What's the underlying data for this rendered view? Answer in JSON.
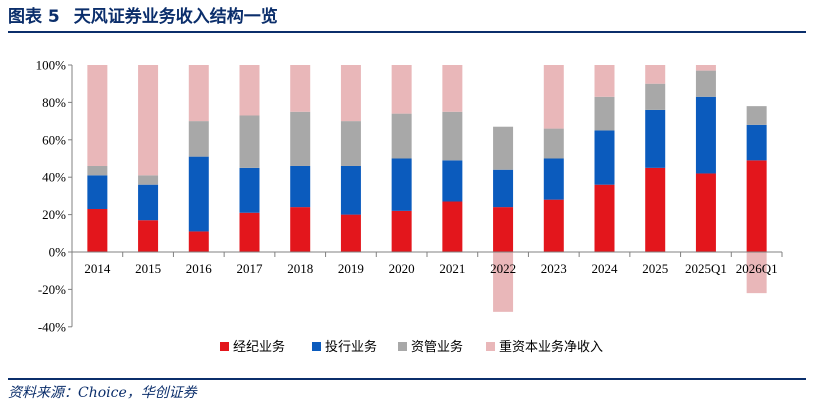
{
  "figure": {
    "title_prefix": "图表 5",
    "title_text": "天风证券业务收入结构一览",
    "source": "资料来源：Choice，华创证券"
  },
  "colors": {
    "brokerage": "#e3161c",
    "ib": "#0b5bbd",
    "am": "#a8a8a8",
    "heavy": "#e9b7b9",
    "title": "#0b2e6b"
  },
  "chart_data": {
    "type": "bar",
    "stacked": true,
    "categories": [
      "2014",
      "2015",
      "2016",
      "2017",
      "2018",
      "2019",
      "2020",
      "2021",
      "2022",
      "2023",
      "2024",
      "2025",
      "2025Q1",
      "2026Q1"
    ],
    "y_ticks": [
      "100%",
      "80%",
      "60%",
      "40%",
      "20%",
      "0%",
      "-20%",
      "-40%"
    ],
    "ylim": [
      -40,
      100
    ],
    "grid": false,
    "legend_position": "bottom",
    "series": [
      {
        "name": "经纪业务",
        "color_key": "brokerage",
        "values": [
          23,
          17,
          11,
          21,
          24,
          20,
          22,
          27,
          24,
          28,
          36,
          45,
          42,
          49
        ]
      },
      {
        "name": "投行业务",
        "color_key": "ib",
        "values": [
          18,
          19,
          40,
          24,
          22,
          26,
          28,
          22,
          20,
          22,
          29,
          31,
          41,
          19
        ]
      },
      {
        "name": "资管业务",
        "color_key": "am",
        "values": [
          5,
          5,
          19,
          28,
          29,
          24,
          24,
          26,
          23,
          16,
          18,
          14,
          14,
          10
        ]
      },
      {
        "name": "重资本业务净收入",
        "color_key": "heavy",
        "values": [
          54,
          59,
          30,
          27,
          25,
          30,
          26,
          25,
          -32,
          34,
          17,
          10,
          3,
          -22
        ]
      }
    ]
  }
}
